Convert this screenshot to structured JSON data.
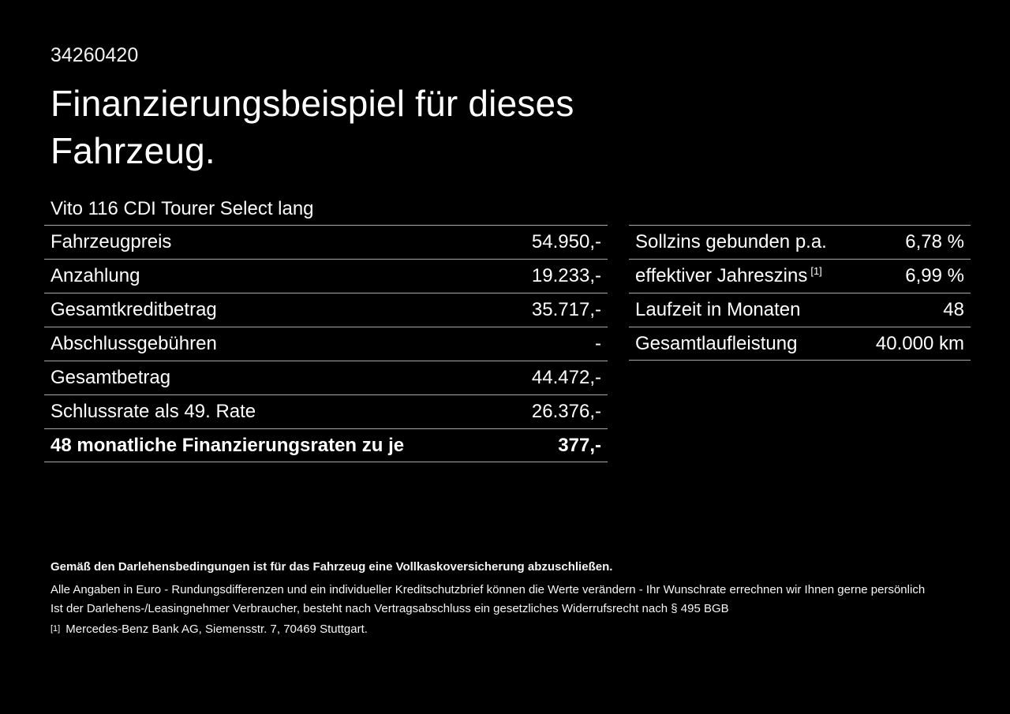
{
  "theme": {
    "background": "#000000",
    "text": "#ffffff",
    "divider": "#a9a9a9"
  },
  "header": {
    "id": "34260420",
    "title_line1": "Finanzierungsbeispiel für dieses",
    "title_line2": "Fahrzeug.",
    "vehicle": "Vito 116 CDI Tourer Select lang"
  },
  "finance_table": {
    "rows": [
      {
        "label": "Fahrzeugpreis",
        "value": "54.950,-"
      },
      {
        "label": "Anzahlung",
        "value": "19.233,-"
      },
      {
        "label": "Gesamtkreditbetrag",
        "value": "35.717,-"
      },
      {
        "label": "Abschlussgebühren",
        "value": "-"
      },
      {
        "label": "Gesamtbetrag",
        "value": "44.472,-"
      },
      {
        "label": "Schlussrate als 49. Rate",
        "value": "26.376,-"
      },
      {
        "label": "48 monatliche Finanzierungsraten zu je",
        "value": "377,-"
      }
    ]
  },
  "conditions_table": {
    "rows": [
      {
        "label": "Sollzins gebunden p.a.",
        "value": "6,78 %"
      },
      {
        "label": "effektiver Jahreszins",
        "footnote": "[1]",
        "value": "6,99 %"
      },
      {
        "label": "Laufzeit in Monaten",
        "value": "48"
      },
      {
        "label": "Gesamtlaufleistung",
        "value": "40.000 km"
      }
    ]
  },
  "footer": {
    "bold_note": "Gemäß den Darlehensbedingungen ist für das Fahrzeug eine Vollkaskoversicherung abzuschließen.",
    "note1": "Alle Angaben in Euro - Rundungsdifferenzen und ein individueller Kreditschutzbrief können die Werte verändern - Ihr Wunschrate errechnen wir Ihnen gerne persönlich",
    "note2": "Ist der Darlehens-/Leasingnehmer Verbraucher, besteht nach Vertragsabschluss ein gesetzliches Widerrufsrecht nach § 495 BGB",
    "footnote_marker": "[1]",
    "footnote_text": "Mercedes-Benz Bank AG, Siemensstr. 7, 70469 Stuttgart."
  }
}
